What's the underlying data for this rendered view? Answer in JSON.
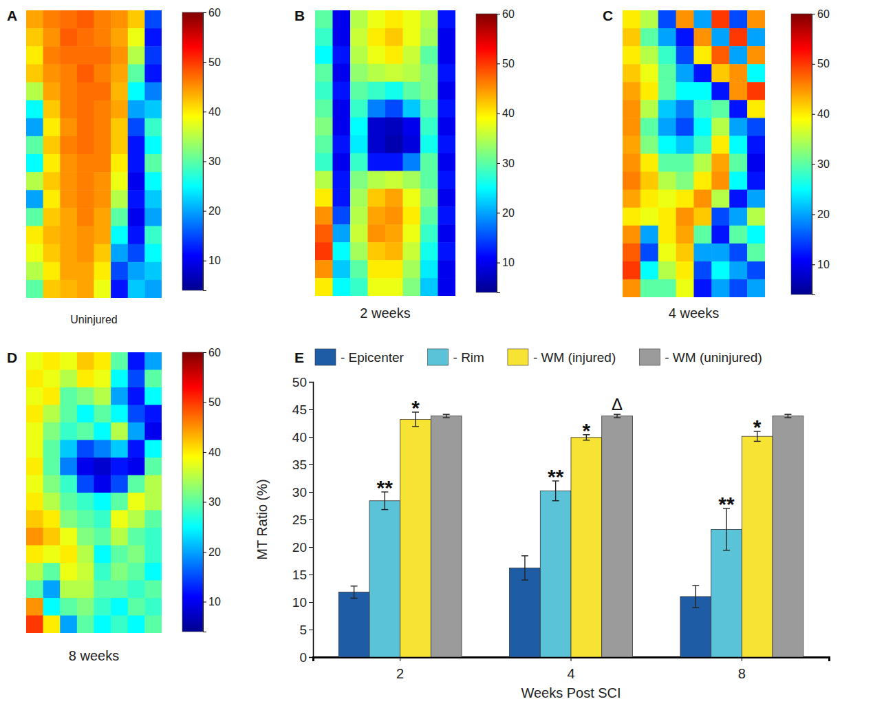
{
  "chart_data": [
    {
      "type": "heatmap",
      "panel": "A",
      "caption": "Uninjured",
      "colorbar": {
        "range": [
          4,
          60
        ],
        "ticks": [
          10,
          20,
          30,
          40,
          50,
          60
        ]
      },
      "cells": [
        [
          44,
          46,
          47,
          48,
          46,
          45,
          42,
          15
        ],
        [
          42,
          45,
          48,
          47,
          46,
          44,
          38,
          12
        ],
        [
          40,
          46,
          47,
          47,
          47,
          45,
          35,
          14
        ],
        [
          42,
          45,
          46,
          48,
          46,
          44,
          30,
          12
        ],
        [
          35,
          44,
          46,
          47,
          47,
          43,
          25,
          18
        ],
        [
          25,
          42,
          46,
          47,
          46,
          44,
          20,
          22
        ],
        [
          20,
          40,
          45,
          47,
          46,
          42,
          15,
          28
        ],
        [
          30,
          42,
          46,
          47,
          46,
          42,
          12,
          25
        ],
        [
          25,
          40,
          45,
          46,
          46,
          40,
          12,
          30
        ],
        [
          35,
          42,
          45,
          46,
          45,
          38,
          10,
          25
        ],
        [
          20,
          40,
          45,
          46,
          45,
          35,
          12,
          22
        ],
        [
          30,
          42,
          44,
          46,
          44,
          30,
          10,
          20
        ],
        [
          40,
          43,
          44,
          45,
          44,
          25,
          12,
          28
        ],
        [
          38,
          42,
          44,
          45,
          42,
          20,
          15,
          25
        ],
        [
          35,
          40,
          44,
          44,
          40,
          15,
          20,
          22
        ],
        [
          30,
          42,
          43,
          44,
          38,
          12,
          22,
          20
        ]
      ]
    },
    {
      "type": "heatmap",
      "panel": "B",
      "caption": "2 weeks",
      "colorbar": {
        "range": [
          4,
          60
        ],
        "ticks": [
          10,
          20,
          30,
          40,
          50,
          60
        ]
      },
      "cells": [
        [
          30,
          10,
          35,
          38,
          40,
          38,
          35,
          12
        ],
        [
          28,
          10,
          36,
          40,
          42,
          38,
          34,
          10
        ],
        [
          25,
          12,
          35,
          38,
          40,
          36,
          30,
          10
        ],
        [
          30,
          10,
          33,
          35,
          36,
          35,
          32,
          12
        ],
        [
          28,
          12,
          30,
          28,
          26,
          30,
          32,
          10
        ],
        [
          30,
          10,
          28,
          18,
          15,
          22,
          30,
          12
        ],
        [
          32,
          10,
          25,
          8,
          7,
          10,
          28,
          10
        ],
        [
          30,
          12,
          24,
          8,
          6,
          9,
          26,
          12
        ],
        [
          28,
          10,
          28,
          12,
          12,
          18,
          30,
          10
        ],
        [
          35,
          12,
          32,
          35,
          36,
          34,
          30,
          12
        ],
        [
          40,
          12,
          34,
          42,
          44,
          38,
          32,
          10
        ],
        [
          45,
          15,
          35,
          44,
          45,
          40,
          30,
          12
        ],
        [
          48,
          20,
          36,
          45,
          44,
          38,
          28,
          10
        ],
        [
          50,
          25,
          34,
          42,
          43,
          36,
          26,
          12
        ],
        [
          45,
          22,
          30,
          40,
          40,
          34,
          24,
          10
        ],
        [
          40,
          25,
          28,
          38,
          38,
          32,
          22,
          10
        ]
      ]
    },
    {
      "type": "heatmap",
      "panel": "C",
      "caption": "4 weeks",
      "colorbar": {
        "range": [
          4,
          60
        ],
        "ticks": [
          10,
          20,
          30,
          40,
          50,
          60
        ]
      },
      "cells": [
        [
          40,
          35,
          15,
          45,
          20,
          50,
          15,
          45
        ],
        [
          42,
          30,
          20,
          12,
          45,
          20,
          50,
          20
        ],
        [
          40,
          35,
          28,
          15,
          40,
          48,
          20,
          45
        ],
        [
          42,
          38,
          30,
          20,
          12,
          42,
          45,
          25
        ],
        [
          44,
          40,
          30,
          25,
          25,
          12,
          45,
          50
        ],
        [
          45,
          35,
          22,
          18,
          28,
          30,
          12,
          40
        ],
        [
          45,
          30,
          20,
          15,
          25,
          35,
          20,
          15
        ],
        [
          44,
          32,
          25,
          22,
          28,
          40,
          25,
          12
        ],
        [
          45,
          40,
          30,
          30,
          35,
          44,
          30,
          10
        ],
        [
          46,
          42,
          35,
          32,
          40,
          45,
          25,
          12
        ],
        [
          44,
          40,
          38,
          40,
          45,
          35,
          12,
          20
        ],
        [
          40,
          38,
          40,
          45,
          42,
          15,
          20,
          35
        ],
        [
          45,
          20,
          40,
          44,
          30,
          12,
          30,
          25
        ],
        [
          48,
          15,
          38,
          42,
          20,
          20,
          15,
          30
        ],
        [
          50,
          25,
          35,
          40,
          15,
          25,
          20,
          15
        ],
        [
          45,
          30,
          30,
          38,
          12,
          20,
          15,
          20
        ]
      ]
    },
    {
      "type": "heatmap",
      "panel": "D",
      "caption": "8 weeks",
      "colorbar": {
        "range": [
          4,
          60
        ],
        "ticks": [
          10,
          20,
          30,
          40,
          50,
          60
        ]
      },
      "cells": [
        [
          38,
          40,
          38,
          42,
          40,
          30,
          12,
          20
        ],
        [
          40,
          38,
          35,
          40,
          38,
          25,
          15,
          30
        ],
        [
          38,
          40,
          30,
          32,
          35,
          20,
          12,
          25
        ],
        [
          40,
          35,
          30,
          25,
          30,
          25,
          15,
          12
        ],
        [
          38,
          32,
          28,
          30,
          25,
          35,
          20,
          10
        ],
        [
          38,
          30,
          22,
          15,
          18,
          22,
          12,
          25
        ],
        [
          40,
          30,
          18,
          10,
          8,
          12,
          10,
          30
        ],
        [
          38,
          32,
          28,
          15,
          10,
          15,
          30,
          35
        ],
        [
          40,
          35,
          30,
          28,
          25,
          30,
          38,
          35
        ],
        [
          42,
          40,
          32,
          30,
          28,
          38,
          35,
          30
        ],
        [
          45,
          42,
          38,
          32,
          30,
          35,
          30,
          28
        ],
        [
          40,
          38,
          40,
          35,
          25,
          30,
          32,
          28
        ],
        [
          35,
          30,
          38,
          36,
          28,
          32,
          30,
          25
        ],
        [
          30,
          20,
          35,
          35,
          30,
          30,
          28,
          30
        ],
        [
          45,
          25,
          30,
          32,
          28,
          25,
          30,
          28
        ],
        [
          50,
          40,
          20,
          30,
          25,
          28,
          25,
          30
        ]
      ]
    },
    {
      "type": "bar",
      "panel": "E",
      "x_label": "Weeks Post SCI",
      "y_label": "MT Ratio (%)",
      "categories": [
        "2",
        "4",
        "8"
      ],
      "ylim": [
        0,
        50
      ],
      "yticks": [
        0,
        5,
        10,
        15,
        20,
        25,
        30,
        35,
        40,
        45,
        50
      ],
      "legend": "top",
      "series": [
        {
          "name": "- Epicenter",
          "color": "#1f5ca6",
          "values": [
            11.8,
            16.2,
            11.0
          ],
          "errors": [
            1.1,
            2.2,
            2.0
          ],
          "significance": [
            null,
            null,
            null
          ]
        },
        {
          "name": "- Rim",
          "color": "#5bc3d8",
          "values": [
            28.4,
            30.2,
            23.2
          ],
          "errors": [
            1.6,
            1.8,
            3.8
          ],
          "significance": [
            "**",
            "**",
            "**"
          ]
        },
        {
          "name": "- WM (injured)",
          "color": "#f7e334",
          "values": [
            43.2,
            39.9,
            40.1
          ],
          "errors": [
            1.3,
            0.5,
            0.9
          ],
          "significance": [
            "*",
            "*",
            "*"
          ]
        },
        {
          "name": "- WM (uninjured)",
          "color": "#9b9b9b",
          "values": [
            43.8,
            43.8,
            43.8
          ],
          "errors": [
            0.3,
            0.3,
            0.3
          ],
          "significance": [
            null,
            "Δ",
            null
          ]
        }
      ]
    }
  ]
}
